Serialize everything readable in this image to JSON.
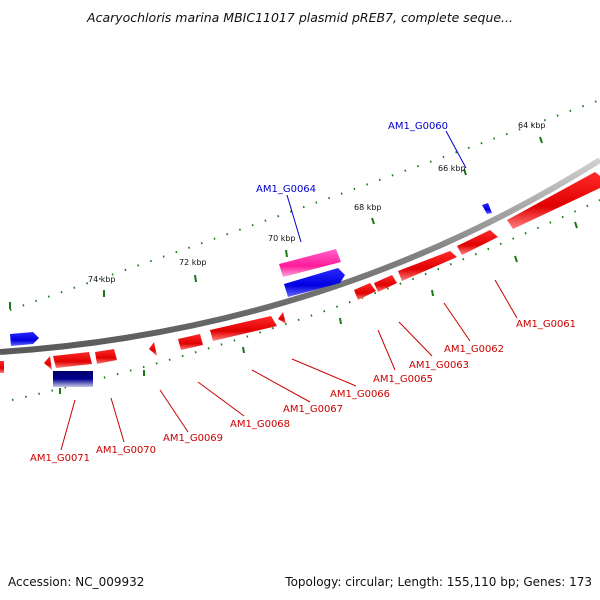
{
  "title": "Acaryochloris marina MBIC11017 plasmid pREB7, complete seque...",
  "footer": {
    "accession": "Accession: NC_009932",
    "summary": "Topology: circular; Length: 155,110 bp; Genes: 173"
  },
  "colors": {
    "forward_gene": "#ff0000",
    "reverse_gene": "#0000ff",
    "highlight_gene": "#ff3399",
    "dark_gene": "#00008b",
    "label_forward": "#cc0000",
    "label_reverse": "#0000cc",
    "tick": "#1a7a1a",
    "backbone": "#808080"
  },
  "kbp_ticks": [
    "64 kbp",
    "66 kbp",
    "68 kbp",
    "70 kbp",
    "72 kbp",
    "74 kbp"
  ],
  "gene_labels": [
    {
      "text": "AM1_G0060",
      "strand": "reverse"
    },
    {
      "text": "AM1_G0064",
      "strand": "reverse"
    },
    {
      "text": "AM1_G0061",
      "strand": "forward"
    },
    {
      "text": "AM1_G0062",
      "strand": "forward"
    },
    {
      "text": "AM1_G0063",
      "strand": "forward"
    },
    {
      "text": "AM1_G0065",
      "strand": "forward"
    },
    {
      "text": "AM1_G0066",
      "strand": "forward"
    },
    {
      "text": "AM1_G0067",
      "strand": "forward"
    },
    {
      "text": "AM1_G0068",
      "strand": "forward"
    },
    {
      "text": "AM1_G0069",
      "strand": "forward"
    },
    {
      "text": "AM1_G0070",
      "strand": "forward"
    },
    {
      "text": "AM1_G0071",
      "strand": "forward"
    }
  ]
}
